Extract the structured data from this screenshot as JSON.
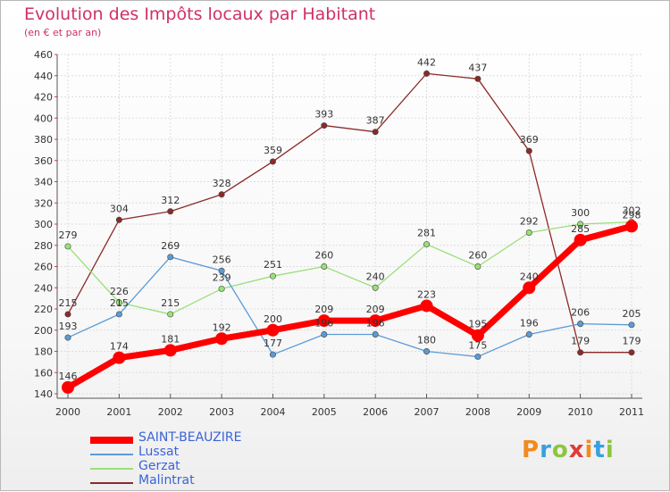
{
  "chart_data": {
    "type": "line",
    "title": "Evolution des Impôts locaux par Habitant",
    "subtitle": "(en € et par an)",
    "x": [
      "2000",
      "2001",
      "2002",
      "2003",
      "2004",
      "2005",
      "2006",
      "2007",
      "2008",
      "2009",
      "2010",
      "2011"
    ],
    "y_ticks": [
      140,
      160,
      180,
      200,
      220,
      240,
      260,
      280,
      300,
      320,
      340,
      360,
      380,
      400,
      420,
      440,
      460
    ],
    "ylim": [
      140,
      460
    ],
    "grid": true,
    "legend_position": "bottom-left",
    "series": [
      {
        "name": "SAINT-BEAUZIRE",
        "color": "#ff0000",
        "values": [
          146,
          174,
          181,
          192,
          200,
          209,
          209,
          223,
          195,
          240,
          285,
          298
        ]
      },
      {
        "name": "Lussat",
        "color": "#5b9bd5",
        "values": [
          193,
          215,
          269,
          256,
          177,
          196,
          196,
          180,
          175,
          196,
          206,
          205
        ]
      },
      {
        "name": "Gerzat",
        "color": "#99e07a",
        "values": [
          279,
          226,
          215,
          239,
          251,
          260,
          240,
          281,
          260,
          292,
          300,
          302
        ]
      },
      {
        "name": "Malintrat",
        "color": "#8b2a2a",
        "values": [
          215,
          304,
          312,
          328,
          359,
          393,
          387,
          442,
          437,
          369,
          179,
          179
        ]
      }
    ]
  },
  "logo": {
    "letters": [
      {
        "ch": "P",
        "color": "#f28a1e"
      },
      {
        "ch": "r",
        "color": "#3aa0dc"
      },
      {
        "ch": "o",
        "color": "#8cc63f"
      },
      {
        "ch": "x",
        "color": "#e03a3a"
      },
      {
        "ch": "i",
        "color": "#f28a1e"
      },
      {
        "ch": "t",
        "color": "#3aa0dc"
      },
      {
        "ch": "i",
        "color": "#8cc63f"
      }
    ]
  }
}
